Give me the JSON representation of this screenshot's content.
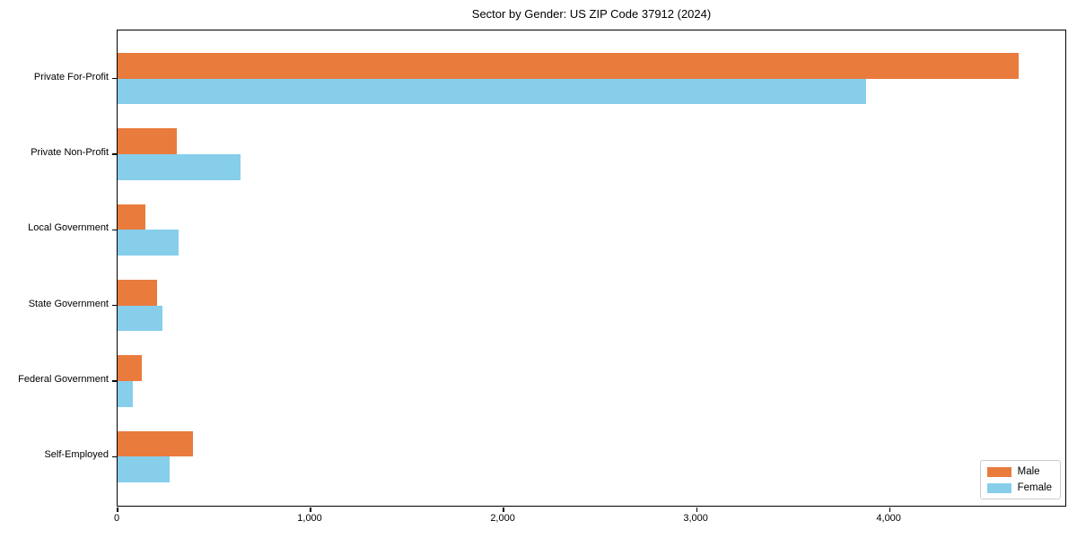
{
  "chart_data": {
    "type": "bar",
    "orientation": "horizontal",
    "title": "Sector by Gender: US ZIP Code 37912 (2024)",
    "categories": [
      "Private For-Profit",
      "Private Non-Profit",
      "Local Government",
      "State Government",
      "Federal Government",
      "Self-Employed"
    ],
    "series": [
      {
        "name": "Male",
        "color": "#E97B3D",
        "values": [
          4670,
          307,
          145,
          205,
          125,
          390
        ]
      },
      {
        "name": "Female",
        "color": "#87CEEB",
        "values": [
          3880,
          636,
          318,
          233,
          80,
          271
        ]
      }
    ],
    "xlabel": "",
    "ylabel": "",
    "xlim": [
      0,
      4920
    ],
    "x_ticks": [
      0,
      1000,
      2000,
      3000,
      4000
    ],
    "x_tick_labels": [
      "0",
      "1,000",
      "2,000",
      "3,000",
      "4,000"
    ],
    "legend_position": "lower right",
    "grid": false,
    "background": "#ffffff",
    "axis_color": "#000000"
  }
}
